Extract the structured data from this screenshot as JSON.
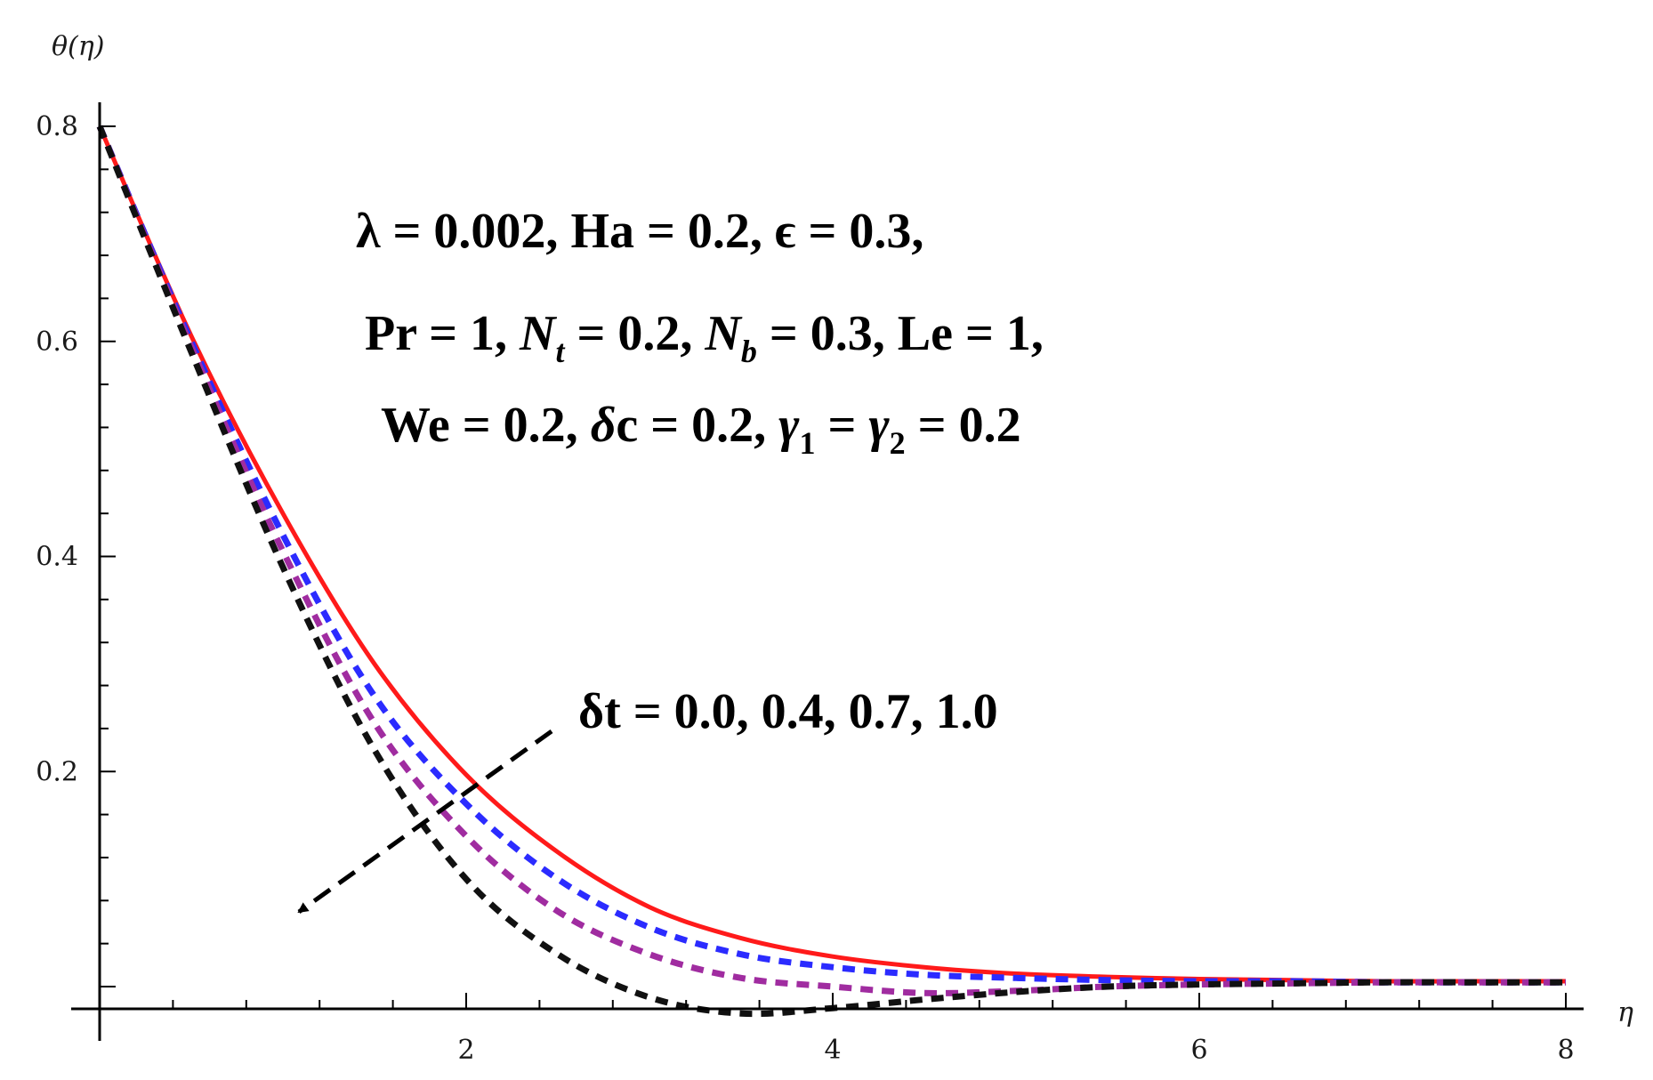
{
  "chart_data": {
    "type": "line",
    "title": "",
    "xlabel": "η",
    "ylabel": "θ(η)",
    "xlim": [
      0,
      8
    ],
    "ylim": [
      -0.0264,
      0.8
    ],
    "x_ticks": [
      {
        "v": 2,
        "label": "2"
      },
      {
        "v": 4,
        "label": "4"
      },
      {
        "v": 6,
        "label": "6"
      },
      {
        "v": 8,
        "label": "8"
      }
    ],
    "y_ticks": [
      {
        "v": 0.2,
        "label": "0.2"
      },
      {
        "v": 0.4,
        "label": "0.4"
      },
      {
        "v": 0.6,
        "label": "0.6"
      },
      {
        "v": 0.8,
        "label": "0.8"
      }
    ],
    "grid": false,
    "legend": "none",
    "series": [
      {
        "param_value": "0.0",
        "color": "#ff1a1a",
        "style": "solid",
        "x": [
          0,
          0.5,
          1,
          1.5,
          2,
          2.5,
          3,
          3.5,
          4,
          4.5,
          5,
          5.5,
          6,
          6.5,
          7,
          7.5,
          8
        ],
        "y": [
          0.8,
          0.605,
          0.44,
          0.3,
          0.197,
          0.125,
          0.074,
          0.045,
          0.028,
          0.018,
          0.012,
          0.009,
          0.007,
          0.006,
          0.005,
          0.005,
          0.005
        ]
      },
      {
        "param_value": "0.4",
        "color": "#2b2bff",
        "style": "dashed",
        "x": [
          0,
          0.5,
          1,
          1.5,
          2,
          2.5,
          3,
          3.5,
          4,
          4.5,
          5,
          5.5,
          6,
          6.5,
          7,
          7.5,
          8
        ],
        "y": [
          0.8,
          0.6,
          0.42,
          0.27,
          0.17,
          0.1,
          0.055,
          0.03,
          0.018,
          0.011,
          0.008,
          0.006,
          0.005,
          0.005,
          0.004,
          0.004,
          0.004
        ]
      },
      {
        "param_value": "0.7",
        "color": "#a02ca0",
        "style": "dashed",
        "x": [
          0,
          0.5,
          1,
          1.5,
          2,
          2.5,
          3,
          3.5,
          4,
          4.5,
          5,
          5.5,
          6,
          6.5,
          7,
          7.5,
          8
        ],
        "y": [
          0.8,
          0.595,
          0.405,
          0.245,
          0.14,
          0.07,
          0.03,
          0.008,
          0.0,
          -0.006,
          -0.004,
          0.0,
          0.002,
          0.003,
          0.004,
          0.004,
          0.004
        ]
      },
      {
        "param_value": "1.0",
        "color": "#111111",
        "style": "dashed",
        "x": [
          0,
          0.5,
          1,
          1.5,
          2,
          2.5,
          3,
          3.5,
          4,
          4.5,
          5,
          5.5,
          6,
          6.5,
          7,
          7.5,
          8
        ],
        "y": [
          0.8,
          0.59,
          0.39,
          0.22,
          0.1,
          0.03,
          -0.01,
          -0.025,
          -0.02,
          -0.012,
          -0.005,
          0.0,
          0.002,
          0.003,
          0.004,
          0.004,
          0.004
        ]
      }
    ],
    "annotations": {
      "line1": [
        "λ",
        " = 0.002,  ",
        "Ha",
        " = 0.2,  ",
        "ϵ",
        " = 0.3,"
      ],
      "line2": [
        "Pr",
        " = 1,  ",
        "N",
        "t",
        " = 0.2,  ",
        "N",
        "b",
        " = 0.3,  ",
        "Le",
        " = 1,"
      ],
      "line3": [
        "We",
        " = 0.2,  ",
        "δ",
        "c = 0.2,  ",
        "γ",
        "1",
        " = ",
        "γ",
        "2",
        " = 0.2"
      ],
      "param_label": "δt = 0.0,  0.4,  0.7,  1.0"
    }
  }
}
